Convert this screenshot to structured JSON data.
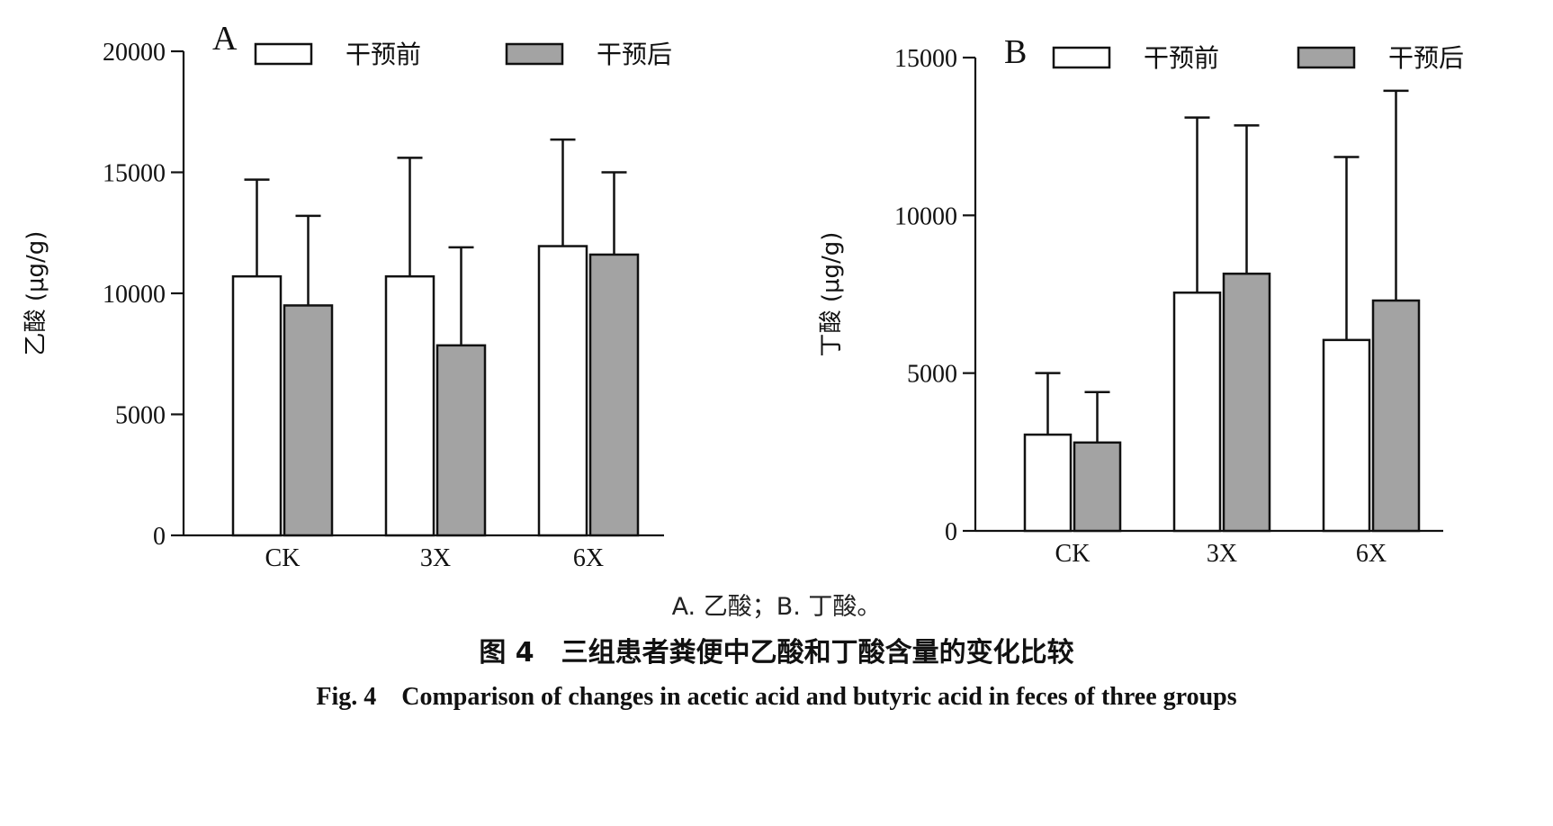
{
  "chart_data": [
    {
      "type": "bar",
      "panel_label": "A",
      "ylabel": "乙酸 (μg/g)",
      "categories": [
        "CK",
        "3X",
        "6X"
      ],
      "ylim": [
        0,
        20000
      ],
      "yticks": [
        0,
        5000,
        10000,
        15000,
        20000
      ],
      "legend_position": "top",
      "series": [
        {
          "name": "干预前",
          "color": "#ffffff",
          "values": [
            10700,
            10700,
            11950
          ],
          "err": [
            4000,
            4900,
            4400
          ]
        },
        {
          "name": "干预后",
          "color": "#a3a3a3",
          "values": [
            9500,
            7850,
            11600
          ],
          "err": [
            3700,
            4050,
            3400
          ]
        }
      ]
    },
    {
      "type": "bar",
      "panel_label": "B",
      "ylabel": "丁酸 (μg/g)",
      "categories": [
        "CK",
        "3X",
        "6X"
      ],
      "ylim": [
        0,
        15000
      ],
      "yticks": [
        0,
        5000,
        10000,
        15000
      ],
      "legend_position": "top",
      "series": [
        {
          "name": "干预前",
          "color": "#ffffff",
          "values": [
            3050,
            7550,
            6050
          ],
          "err": [
            1950,
            5550,
            5800
          ]
        },
        {
          "name": "干预后",
          "color": "#a3a3a3",
          "values": [
            2800,
            8150,
            7300
          ],
          "err": [
            1600,
            4700,
            6650
          ]
        }
      ]
    }
  ],
  "caption": {
    "subtitle": "A. 乙酸；B. 丁酸。",
    "title_cn": "图 4　三组患者粪便中乙酸和丁酸含量的变化比较",
    "title_en": "Fig. 4　Comparison of changes in acetic acid and butyric acid in feces of three groups"
  }
}
